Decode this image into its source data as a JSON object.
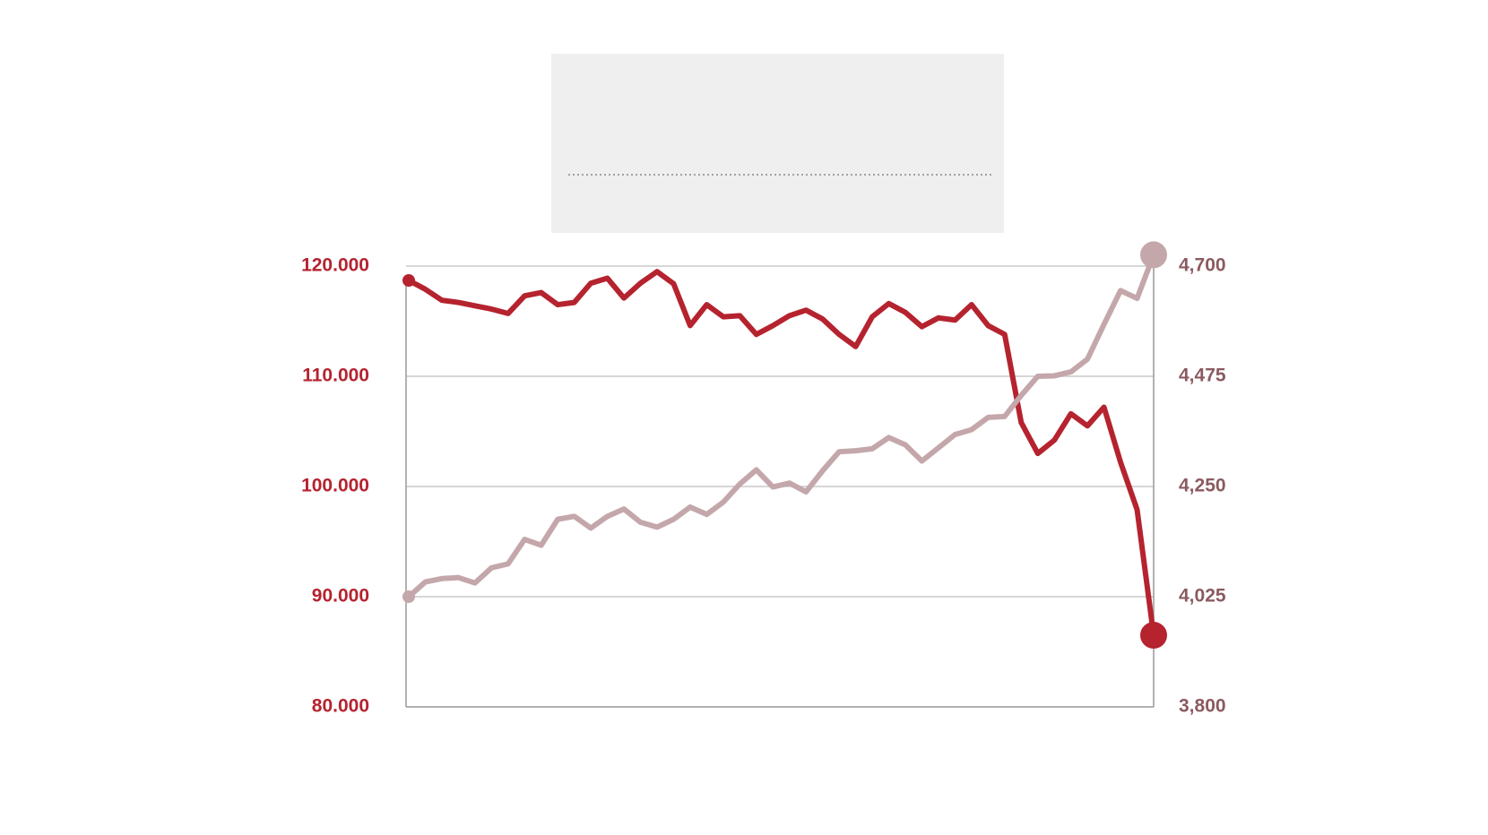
{
  "chart_data": {
    "type": "line",
    "x": [
      0,
      1,
      2,
      3,
      4,
      5,
      6,
      7,
      8,
      9,
      10,
      11,
      12,
      13,
      14,
      15,
      16,
      17,
      18,
      19,
      20,
      21,
      22,
      23,
      24,
      25,
      26,
      27,
      28,
      29,
      30,
      31,
      32,
      33,
      34,
      35,
      36,
      37,
      38,
      39,
      40,
      41,
      42,
      43,
      44,
      45
    ],
    "series": [
      {
        "color": "#b5232f",
        "axis": "y",
        "values": [
          118700,
          117900,
          116900,
          116700,
          116400,
          116100,
          115700,
          117300,
          117600,
          116500,
          116700,
          118450,
          118900,
          117100,
          118450,
          119500,
          118400,
          114600,
          116500,
          115400,
          115500,
          113800,
          114600,
          115500,
          116000,
          115200,
          113800,
          112700,
          115400,
          116600,
          115800,
          114500,
          115300,
          115100,
          116500,
          114600,
          113800,
          105800,
          103000,
          104200,
          106600,
          105500,
          107200,
          102200,
          97900,
          86500
        ]
      },
      {
        "color": "#c4a7ab",
        "axis": "y2",
        "values": [
          4025,
          4055,
          4062,
          4064,
          4053,
          4084,
          4092,
          4142,
          4130,
          4183,
          4189,
          4165,
          4189,
          4204,
          4177,
          4167,
          4183,
          4208,
          4193,
          4218,
          4255,
          4284,
          4249,
          4257,
          4239,
          4282,
          4321,
          4323,
          4327,
          4350,
          4335,
          4302,
          4329,
          4356,
          4366,
          4391,
          4393,
          4436,
          4475,
          4476,
          4484,
          4510,
          4581,
          4650,
          4634,
          4723
        ]
      }
    ],
    "xlim": [
      0,
      45
    ],
    "ylim": [
      80000,
      120000
    ],
    "yticks": [
      {
        "value": 80000,
        "label": "80.000"
      },
      {
        "value": 90000,
        "label": "90.000"
      },
      {
        "value": 100000,
        "label": "100.000"
      },
      {
        "value": 110000,
        "label": "110.000"
      },
      {
        "value": 120000,
        "label": "120.000"
      }
    ],
    "y2lim": [
      3800,
      4700
    ],
    "y2ticks": [
      {
        "value": 3800,
        "label": "3,800"
      },
      {
        "value": 4025,
        "label": "4,025"
      },
      {
        "value": 4250,
        "label": "4,250"
      },
      {
        "value": 4475,
        "label": "4,475"
      },
      {
        "value": 4700,
        "label": "4,700"
      }
    ],
    "grid": true
  }
}
